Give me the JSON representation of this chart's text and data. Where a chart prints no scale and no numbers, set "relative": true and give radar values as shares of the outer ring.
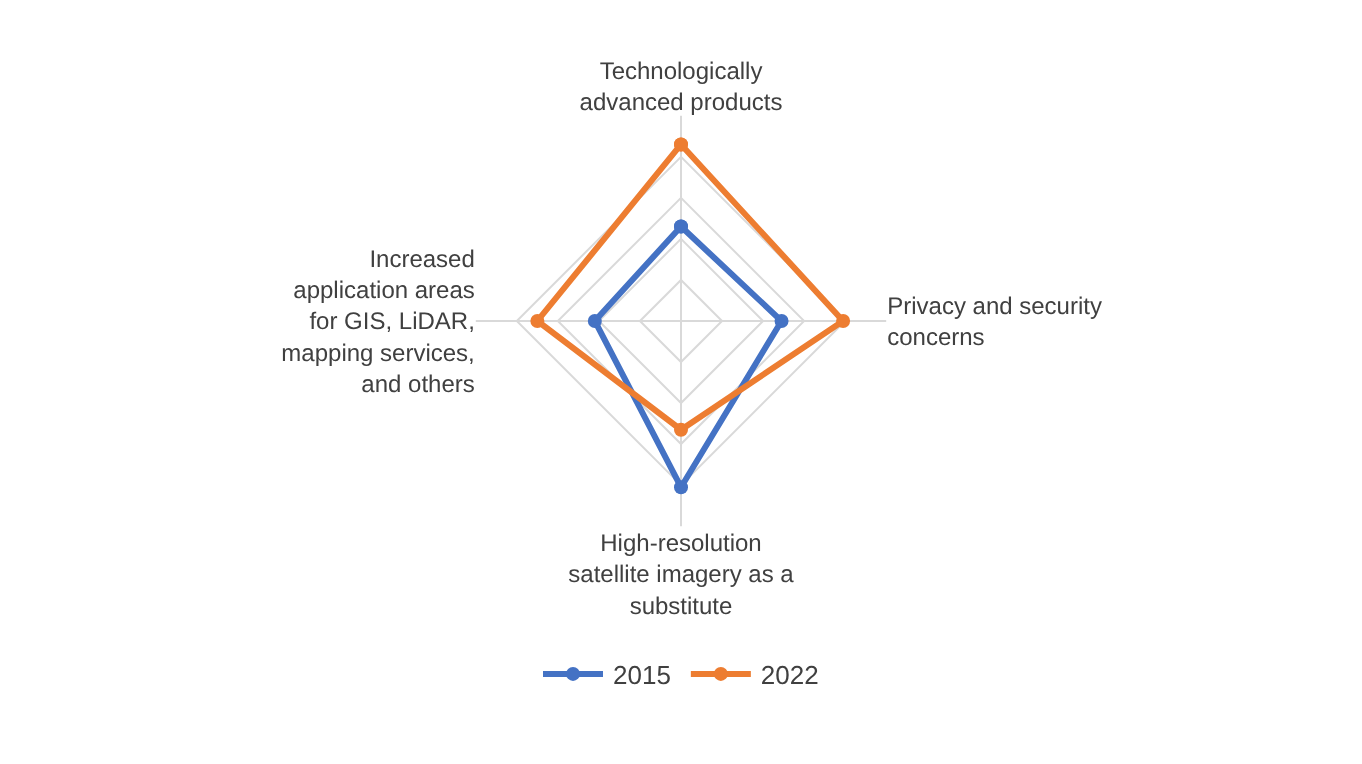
{
  "chart_data": {
    "type": "radar",
    "relative": true,
    "grid": true,
    "legend": "bottom",
    "marker": "circle",
    "line_style": "solid",
    "categories": [
      "Technologically advanced products",
      "Privacy and security concerns",
      "High-resolution satellite imagery as a substitute",
      "Increased application areas for GIS, LiDAR, mapping services, and others"
    ],
    "series": [
      {
        "name": "2015",
        "color": "#4472c4",
        "values": [
          0.46,
          0.49,
          0.81,
          0.42
        ]
      },
      {
        "name": "2022",
        "color": "#ed7d31",
        "values": [
          0.86,
          0.79,
          0.53,
          0.7
        ]
      }
    ]
  }
}
